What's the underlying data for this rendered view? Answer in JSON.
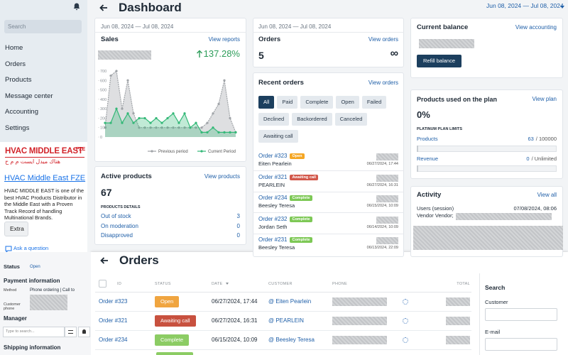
{
  "sidebar": {
    "search_placeholder": "Search",
    "nav": [
      "Home",
      "Orders",
      "Products",
      "Message center",
      "Accounting",
      "Settings"
    ],
    "logo": "HVAC MIDDLE EAST",
    "logo_suffix": "FZE",
    "logo_arabic": "هناك ميدل ايست م م ح",
    "company_link": "HVAC Middle East FZE",
    "description": "HVAC MIDDLE EAST is one of the best HVAC Products Distributor in the Middle East with a Proven Track Record of handling Multinational Brands.",
    "extra_button": "Extra",
    "ask": "Ask a question"
  },
  "header": {
    "title": "Dashboard",
    "date_range": "Jun 08, 2024 — Jul 08, 2024"
  },
  "sales": {
    "date_range": "Jun 08, 2024 — Jul 08, 2024",
    "title": "Sales",
    "link": "View reports",
    "change": "137.28%",
    "chart": {
      "type": "line",
      "ylim": [
        0,
        700
      ],
      "yticks": [
        0,
        100,
        200,
        300,
        400,
        500,
        600,
        700
      ],
      "series": [
        {
          "name": "Previous period",
          "color": "#a0a4a8",
          "values": [
            100,
            650,
            700,
            300,
            600,
            250,
            100,
            100,
            100,
            100,
            100,
            100,
            100,
            100,
            100,
            100,
            100,
            100,
            150,
            250,
            350,
            600,
            200,
            50
          ]
        },
        {
          "name": "Current Period",
          "color": "#33b877",
          "values": [
            150,
            150,
            300,
            150,
            250,
            150,
            200,
            200,
            150,
            200,
            150,
            200,
            250,
            150,
            250,
            100,
            150,
            50,
            50,
            100,
            50,
            50,
            50,
            50
          ]
        }
      ]
    }
  },
  "orders_card": {
    "date_range": "Jun 08, 2024 — Jul 08, 2024",
    "title": "Orders",
    "link": "View orders",
    "value": "5",
    "symbol": "∞"
  },
  "active_products": {
    "title": "Active products",
    "link": "View products",
    "value": "67",
    "details_title": "PRODUCTS DETAILS",
    "rows": [
      {
        "label": "Out of stock",
        "value": "3"
      },
      {
        "label": "On moderation",
        "value": "0"
      },
      {
        "label": "Disapproved",
        "value": "0"
      }
    ]
  },
  "recent_orders": {
    "title": "Recent orders",
    "link": "View orders",
    "filters": [
      "All",
      "Paid",
      "Complete",
      "Open",
      "Failed",
      "Declined",
      "Backordered",
      "Canceled",
      "Awaiting call"
    ],
    "orders": [
      {
        "id": "Order #323",
        "status": "Open",
        "status_color": "#f5a623",
        "customer": "Eiten Pearlein",
        "date": "06/27/2024, 17:44"
      },
      {
        "id": "Order #321",
        "status": "Awaiting call",
        "status_color": "#d2574a",
        "customer": "PEARLEIN",
        "date": "06/27/2024, 16:31"
      },
      {
        "id": "Order #234",
        "status": "Complete",
        "status_color": "#7dc855",
        "customer": "Beesley Teresa",
        "date": "06/15/2024, 10:09"
      },
      {
        "id": "Order #232",
        "status": "Complete",
        "status_color": "#7dc855",
        "customer": "Jordan Seth",
        "date": "06/14/2024, 10:09"
      },
      {
        "id": "Order #231",
        "status": "Complete",
        "status_color": "#7dc855",
        "customer": "Beesley Teresa",
        "date": "06/13/2024, 22:09"
      }
    ]
  },
  "balance": {
    "title": "Current balance",
    "link": "View accounting",
    "button": "Refill balance"
  },
  "plan": {
    "title": "Products used on the plan",
    "link": "View plan",
    "value": "0%",
    "limits_title": "PLATINUM PLAN LIMITS",
    "rows": [
      {
        "label": "Products",
        "used": "63",
        "limit": "/ 100000"
      },
      {
        "label": "Revenue",
        "used": "0",
        "limit": "/ Unlimited"
      }
    ]
  },
  "activity": {
    "title": "Activity",
    "link": "View all",
    "users": "Users (session)",
    "users_date": "07/08/2024, 08:06",
    "vendor": "Vendor Vendor;"
  },
  "order_panel": {
    "status_label": "Status",
    "status": "Open",
    "payment_title": "Payment information",
    "method_label": "Method",
    "method": "Phone ordering | Call to",
    "customer_phone_label": "Customer phone",
    "manager_title": "Manager",
    "manager_search": "Type to search...",
    "shipping_title": "Shipping information"
  },
  "orders_page": {
    "title": "Orders",
    "columns": [
      "ID",
      "STATUS",
      "DATE",
      "CUSTOMER",
      "PHONE",
      "TOTAL"
    ],
    "rows": [
      {
        "id": "Order #323",
        "status": "Open",
        "status_color": "#f0a540",
        "date": "06/27/2024, 17:44",
        "customer": "@ Eiten Pearlein"
      },
      {
        "id": "Order #321",
        "status": "Awaiting call",
        "status_color": "#c8513f",
        "date": "06/27/2024, 16:31",
        "customer": "@ PEARLEIN"
      },
      {
        "id": "Order #234",
        "status": "Complete",
        "status_color": "#8ccc64",
        "date": "06/15/2024, 10:09",
        "customer": "@ Beesley Teresa"
      }
    ],
    "search_panel": {
      "title": "Search",
      "fields": [
        "Customer",
        "E-mail"
      ]
    }
  }
}
